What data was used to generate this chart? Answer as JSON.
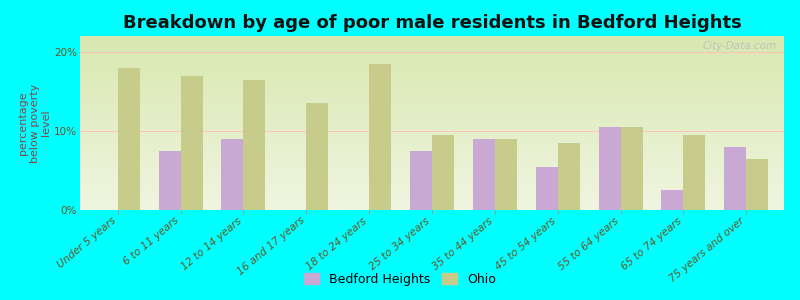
{
  "title": "Breakdown by age of poor male residents in Bedford Heights",
  "ylabel": "percentage\nbelow poverty\nlevel",
  "categories": [
    "Under 5 years",
    "6 to 11 years",
    "12 to 14 years",
    "16 and 17 years",
    "18 to 24 years",
    "25 to 34 years",
    "35 to 44 years",
    "45 to 54 years",
    "55 to 64 years",
    "65 to 74 years",
    "75 years and over"
  ],
  "bedford_heights": [
    0,
    7.5,
    9.0,
    0,
    0,
    7.5,
    9.0,
    5.5,
    10.5,
    2.5,
    8.0
  ],
  "ohio": [
    18.0,
    17.0,
    16.5,
    13.5,
    18.5,
    9.5,
    9.0,
    8.5,
    10.5,
    9.5,
    6.5
  ],
  "bedford_color": "#c9a8d4",
  "ohio_color": "#c8cc8a",
  "background_color": "#00ffff",
  "plot_bg_top": "#d8e8b0",
  "plot_bg_bottom": "#f0f5e0",
  "ylim": [
    0,
    22
  ],
  "yticks": [
    0,
    10,
    20
  ],
  "ytick_labels": [
    "0%",
    "10%",
    "20%"
  ],
  "bar_width": 0.35,
  "title_fontsize": 13,
  "axis_label_fontsize": 8,
  "tick_fontsize": 7.5,
  "legend_fontsize": 9,
  "watermark": "City-Data.com"
}
